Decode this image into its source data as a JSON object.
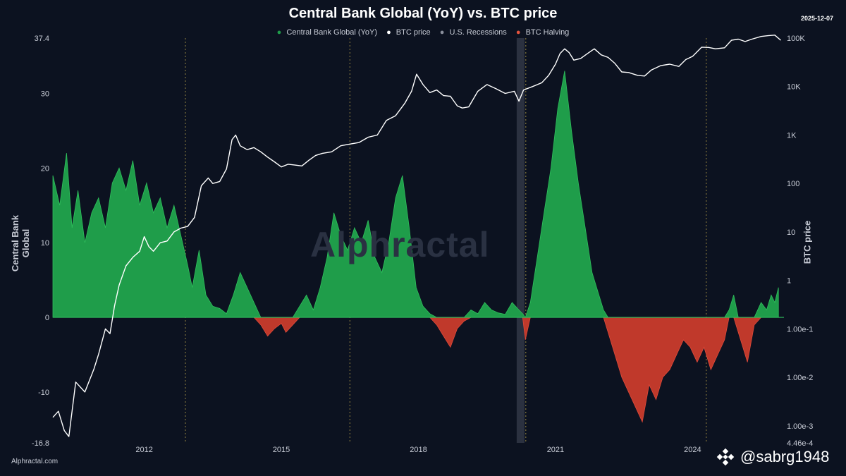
{
  "chart_data": {
    "type": "area",
    "title": "Central Bank Global (YoY) vs. BTC price",
    "date_label": "2025-12-07",
    "ylabel_left": "Central Bank Global",
    "ylabel_right": "BTC price",
    "ylim_left": [
      -16.8,
      37.4
    ],
    "ylim_right_log": [
      0.000446,
      100000
    ],
    "x_range": [
      2010.0,
      2026.0
    ],
    "xticks": [
      {
        "value": 2012,
        "label": "2012"
      },
      {
        "value": 2015,
        "label": "2015"
      },
      {
        "value": 2018,
        "label": "2018"
      },
      {
        "value": 2021,
        "label": "2021"
      },
      {
        "value": 2024,
        "label": "2024"
      }
    ],
    "yticks_left": [
      {
        "value": 37.4,
        "label": "37.4"
      },
      {
        "value": 30,
        "label": "30"
      },
      {
        "value": 20,
        "label": "20"
      },
      {
        "value": 10,
        "label": "10"
      },
      {
        "value": 0,
        "label": "0"
      },
      {
        "value": -10,
        "label": "-10"
      },
      {
        "value": -16.8,
        "label": "-16.8"
      }
    ],
    "yticks_right": [
      {
        "value": 100000,
        "label": "100K"
      },
      {
        "value": 10000,
        "label": "10K"
      },
      {
        "value": 1000,
        "label": "1K"
      },
      {
        "value": 100,
        "label": "100"
      },
      {
        "value": 10,
        "label": "10"
      },
      {
        "value": 1,
        "label": "1"
      },
      {
        "value": 0.1,
        "label": "1.00e-1"
      },
      {
        "value": 0.01,
        "label": "1.00e-2"
      },
      {
        "value": 0.001,
        "label": "1.00e-3"
      },
      {
        "value": 0.000446,
        "label": "4.46e-4"
      }
    ],
    "legend": [
      {
        "name": "Central Bank Global (YoY)",
        "color": "#1f9d4a"
      },
      {
        "name": "BTC price",
        "color": "#ffffff"
      },
      {
        "name": "U.S. Recessions",
        "color": "#8a8f9c"
      },
      {
        "name": "BTC Halving",
        "color": "#e5533d"
      }
    ],
    "halvings": [
      2012.9,
      2016.5,
      2020.35,
      2024.3
    ],
    "recession": [
      2020.15,
      2020.32
    ],
    "series": [
      {
        "name": "Central Bank Global (YoY)",
        "axis": "left",
        "positive_color": "#1f9d4a",
        "negative_color": "#c0392b",
        "x": [
          2010.0,
          2010.15,
          2010.3,
          2010.42,
          2010.55,
          2010.7,
          2010.85,
          2011.0,
          2011.15,
          2011.3,
          2011.45,
          2011.6,
          2011.75,
          2011.9,
          2012.05,
          2012.2,
          2012.35,
          2012.5,
          2012.65,
          2012.8,
          2012.95,
          2013.05,
          2013.2,
          2013.35,
          2013.5,
          2013.65,
          2013.8,
          2013.95,
          2014.1,
          2014.25,
          2014.4,
          2014.55,
          2014.7,
          2014.85,
          2015.0,
          2015.1,
          2015.25,
          2015.4,
          2015.55,
          2015.7,
          2015.85,
          2016.0,
          2016.15,
          2016.3,
          2016.45,
          2016.6,
          2016.75,
          2016.9,
          2017.05,
          2017.2,
          2017.35,
          2017.5,
          2017.65,
          2017.8,
          2017.95,
          2018.1,
          2018.25,
          2018.4,
          2018.55,
          2018.7,
          2018.85,
          2019.0,
          2019.15,
          2019.3,
          2019.45,
          2019.6,
          2019.75,
          2019.9,
          2020.05,
          2020.2,
          2020.28,
          2020.34,
          2020.45,
          2020.6,
          2020.75,
          2020.9,
          2021.05,
          2021.2,
          2021.35,
          2021.5,
          2021.65,
          2021.8,
          2021.95,
          2022.05,
          2022.15,
          2022.3,
          2022.45,
          2022.6,
          2022.75,
          2022.9,
          2023.05,
          2023.2,
          2023.35,
          2023.5,
          2023.65,
          2023.8,
          2023.95,
          2024.1,
          2024.25,
          2024.4,
          2024.55,
          2024.7,
          2024.8,
          2024.9,
          2025.0,
          2025.1,
          2025.2,
          2025.35,
          2025.5,
          2025.62,
          2025.72,
          2025.8,
          2025.88
        ],
        "y": [
          19,
          15,
          22,
          12,
          17,
          10,
          14,
          16,
          12,
          18,
          20,
          17,
          21,
          15,
          18,
          14,
          16,
          12,
          15,
          11,
          7,
          4,
          9,
          3,
          1.5,
          1.2,
          0.5,
          3,
          6,
          4,
          2,
          -1,
          -2.5,
          -1.5,
          -0.8,
          -2,
          -1,
          1.5,
          3,
          1,
          4,
          8,
          14,
          11,
          9,
          12,
          10,
          13,
          8,
          6,
          10,
          16,
          19,
          12,
          4,
          1.5,
          0.5,
          -1,
          -2.5,
          -4,
          -1.5,
          -0.5,
          1,
          0.5,
          2,
          1,
          0.6,
          0.4,
          2,
          1,
          0.5,
          -3,
          2,
          8,
          14,
          20,
          28,
          33,
          25,
          18,
          12,
          6,
          3,
          1,
          -2,
          -5,
          -8,
          -10,
          -12,
          -14,
          -9,
          -11,
          -8,
          -7,
          -5,
          -3,
          -4,
          -6,
          -4,
          -7,
          -5,
          -3,
          1,
          3,
          -2,
          -4,
          -6,
          -1,
          2,
          1,
          3,
          2,
          4
        ]
      },
      {
        "name": "BTC price",
        "axis": "right",
        "color": "#ffffff",
        "x": [
          2010.0,
          2010.12,
          2010.25,
          2010.35,
          2010.5,
          2010.7,
          2010.9,
          2011.0,
          2011.15,
          2011.25,
          2011.35,
          2011.45,
          2011.6,
          2011.75,
          2011.9,
          2012.0,
          2012.1,
          2012.2,
          2012.35,
          2012.5,
          2012.65,
          2012.8,
          2012.95,
          2013.1,
          2013.25,
          2013.4,
          2013.5,
          2013.65,
          2013.8,
          2013.92,
          2014.0,
          2014.1,
          2014.25,
          2014.4,
          2014.55,
          2014.7,
          2014.85,
          2015.0,
          2015.15,
          2015.3,
          2015.45,
          2015.6,
          2015.75,
          2015.9,
          2016.1,
          2016.3,
          2016.5,
          2016.7,
          2016.9,
          2017.1,
          2017.3,
          2017.5,
          2017.7,
          2017.85,
          2017.96,
          2018.1,
          2018.25,
          2018.4,
          2018.55,
          2018.7,
          2018.85,
          2018.96,
          2019.1,
          2019.3,
          2019.5,
          2019.7,
          2019.9,
          2020.1,
          2020.2,
          2020.3,
          2020.5,
          2020.7,
          2020.85,
          2021.0,
          2021.1,
          2021.2,
          2021.3,
          2021.4,
          2021.55,
          2021.7,
          2021.85,
          2022.0,
          2022.15,
          2022.3,
          2022.45,
          2022.6,
          2022.8,
          2022.95,
          2023.1,
          2023.3,
          2023.5,
          2023.7,
          2023.85,
          2024.0,
          2024.2,
          2024.35,
          2024.5,
          2024.7,
          2024.85,
          2025.0,
          2025.15,
          2025.3,
          2025.5,
          2025.65,
          2025.8,
          2025.93
        ],
        "y": [
          0.0015,
          0.002,
          0.0008,
          0.0006,
          0.008,
          0.005,
          0.015,
          0.03,
          0.1,
          0.08,
          0.3,
          0.8,
          2,
          3,
          4,
          8,
          5,
          4,
          6,
          6.5,
          10,
          12,
          13,
          20,
          90,
          130,
          100,
          110,
          200,
          800,
          1000,
          600,
          500,
          550,
          450,
          350,
          280,
          220,
          250,
          240,
          230,
          300,
          380,
          420,
          450,
          600,
          650,
          700,
          900,
          1000,
          2000,
          2500,
          4500,
          8000,
          18000,
          11000,
          7500,
          8500,
          6500,
          6300,
          4000,
          3600,
          3800,
          8000,
          11000,
          9000,
          7200,
          8000,
          5000,
          8500,
          10000,
          12000,
          17000,
          29000,
          48000,
          60000,
          50000,
          35000,
          38000,
          48000,
          60000,
          45000,
          40000,
          30000,
          20000,
          19500,
          17000,
          16500,
          22000,
          27000,
          29000,
          26000,
          36000,
          42000,
          65000,
          64000,
          60000,
          63000,
          90000,
          95000,
          85000,
          95000,
          108000,
          112000,
          115000,
          90000
        ]
      }
    ]
  },
  "footer": {
    "source": "Alphractal.com",
    "watermark": "Alphractal",
    "handle": "@sabrg1948"
  }
}
